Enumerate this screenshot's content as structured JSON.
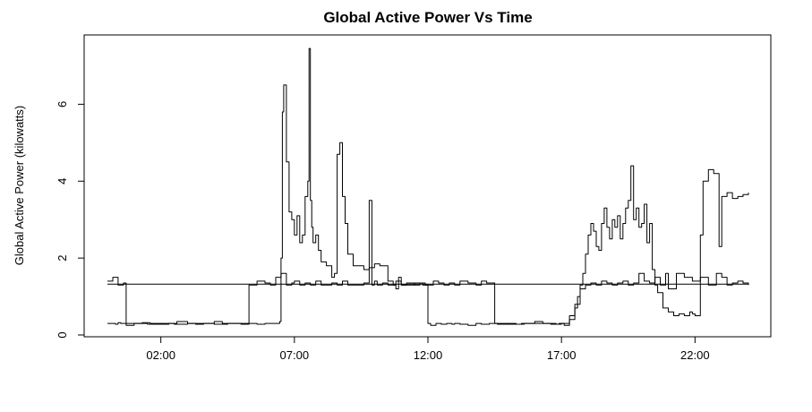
{
  "chart_data": {
    "type": "line",
    "title": "Global Active Power Vs Time",
    "xlabel": "",
    "ylabel": "Global Active Power (kilowatts)",
    "x_unit": "hours",
    "xlim": [
      0,
      24
    ],
    "ylim": [
      0,
      7.5
    ],
    "x_ticks": [
      {
        "value": 2,
        "label": "02:00"
      },
      {
        "value": 7,
        "label": "07:00"
      },
      {
        "value": 12,
        "label": "12:00"
      },
      {
        "value": 17,
        "label": "17:00"
      },
      {
        "value": 22,
        "label": "22:00"
      }
    ],
    "y_ticks": [
      0,
      2,
      4,
      6
    ],
    "grid": false,
    "legend": "none",
    "color": "#000000",
    "series": [
      {
        "x": [
          0,
          0.1,
          0.2,
          0.3,
          0.4,
          0.5,
          0.7,
          1,
          1.3,
          1.6,
          2,
          2.3,
          2.6,
          3,
          3.3,
          3.6,
          4,
          4.3,
          4.6,
          5,
          5.3,
          5.6,
          5.9,
          6.1,
          6.3,
          6.45,
          6.5,
          6.55,
          6.6,
          6.7,
          6.8,
          6.9,
          7,
          7.1,
          7.2,
          7.3,
          7.4,
          7.5,
          7.55,
          7.6,
          7.65,
          7.7,
          7.8,
          7.9,
          8,
          8.2,
          8.4,
          8.5,
          8.6,
          8.7,
          8.8,
          8.9,
          9,
          9.2,
          9.4,
          9.6,
          9.8,
          10,
          10.2,
          10.5,
          10.7,
          10.8,
          10.9,
          11,
          11.2,
          11.5,
          11.8,
          12,
          12.1,
          12.3,
          12.5,
          12.7,
          12.9,
          13,
          13.2,
          13.5,
          13.8,
          14,
          14.3,
          14.6,
          15,
          15.3,
          15.6,
          16,
          16.3,
          16.6,
          16.9,
          17.1,
          17.3,
          17.5,
          17.6,
          17.7,
          17.8,
          17.9,
          18,
          18.1,
          18.2,
          18.3,
          18.4,
          18.5,
          18.6,
          18.7,
          18.8,
          18.9,
          19,
          19.1,
          19.2,
          19.3,
          19.4,
          19.5,
          19.6,
          19.7,
          19.8,
          19.9,
          20,
          20.1,
          20.2,
          20.3,
          20.4,
          20.5,
          20.6,
          20.8,
          21,
          21.2,
          21.4,
          21.6,
          21.8,
          21.9,
          22,
          22.1,
          22.2,
          22.3,
          22.5,
          22.7,
          22.9,
          23,
          23.2,
          23.4,
          23.6,
          23.8,
          24
        ],
        "y": [
          0.3,
          0.3,
          0.3,
          0.28,
          0.32,
          0.3,
          0.25,
          0.3,
          0.32,
          0.3,
          0.28,
          0.3,
          0.35,
          0.3,
          0.28,
          0.3,
          0.35,
          0.3,
          0.3,
          0.28,
          0.3,
          0.28,
          0.3,
          0.3,
          0.3,
          0.35,
          2.0,
          5.8,
          6.5,
          4.5,
          3.2,
          3.0,
          2.6,
          3.1,
          2.4,
          2.6,
          3.6,
          4.0,
          7.45,
          3.5,
          2.8,
          2.4,
          2.6,
          2.2,
          1.9,
          1.8,
          1.5,
          1.6,
          4.7,
          5.0,
          3.6,
          2.9,
          2.1,
          1.8,
          1.8,
          1.7,
          1.75,
          1.85,
          1.8,
          1.4,
          1.3,
          1.2,
          1.5,
          1.3,
          1.3,
          1.35,
          1.3,
          0.3,
          0.25,
          0.3,
          0.28,
          0.3,
          0.28,
          0.3,
          0.28,
          0.25,
          0.3,
          0.28,
          0.3,
          0.28,
          0.3,
          0.28,
          0.3,
          0.35,
          0.3,
          0.28,
          0.3,
          0.25,
          0.4,
          0.7,
          1.0,
          1.3,
          1.6,
          2.1,
          2.6,
          2.9,
          2.7,
          2.3,
          2.2,
          2.9,
          3.3,
          2.8,
          2.5,
          3.0,
          2.8,
          3.1,
          2.5,
          2.9,
          3.3,
          3.5,
          4.4,
          3.0,
          3.3,
          2.8,
          2.9,
          3.4,
          2.4,
          2.9,
          1.7,
          1.3,
          1.1,
          0.7,
          0.6,
          0.5,
          0.55,
          0.5,
          0.6,
          0.55,
          0.5,
          0.5,
          2.6,
          4.0,
          4.3,
          4.2,
          2.3,
          3.6,
          3.7,
          3.55,
          3.6,
          3.65,
          3.7
        ]
      },
      {
        "x": [
          0,
          0.2,
          0.4,
          0.6,
          0.7,
          1,
          1.5,
          2,
          2.5,
          3,
          3.5,
          4,
          4.5,
          5,
          5.3,
          5.6,
          5.9,
          6.1,
          6.3,
          6.5,
          6.7,
          6.9,
          7,
          7.2,
          7.4,
          7.6,
          7.8,
          8,
          8.2,
          8.4,
          8.6,
          8.8,
          9,
          9.3,
          9.6,
          9.8,
          9.9,
          10,
          10.1,
          10.3,
          10.5,
          10.8,
          11,
          11.2,
          11.5,
          11.7,
          11.9,
          12,
          12.2,
          12.4,
          12.6,
          12.8,
          13,
          13.2,
          13.5,
          13.8,
          14,
          14.2,
          14.4,
          14.5,
          14.7,
          15,
          15.5,
          16,
          16.5,
          16.8,
          17,
          17.3,
          17.5,
          17.7,
          17.9,
          18.1,
          18.3,
          18.5,
          18.7,
          18.9,
          19.1,
          19.3,
          19.5,
          19.7,
          19.9,
          20.1,
          20.3,
          20.5,
          20.7,
          20.9,
          21,
          21.3,
          21.6,
          21.9,
          22.2,
          22.5,
          22.8,
          23,
          23.2,
          23.4,
          23.6,
          23.8,
          24
        ],
        "y": [
          1.4,
          1.5,
          1.3,
          1.35,
          0.3,
          0.3,
          0.28,
          0.3,
          0.28,
          0.3,
          0.3,
          0.28,
          0.3,
          0.3,
          1.3,
          1.4,
          1.35,
          1.3,
          1.5,
          1.6,
          1.3,
          1.35,
          1.4,
          1.3,
          1.35,
          1.3,
          1.4,
          1.3,
          1.3,
          1.35,
          1.3,
          1.4,
          1.3,
          1.3,
          1.35,
          3.5,
          1.3,
          1.4,
          1.3,
          1.35,
          1.3,
          1.4,
          1.3,
          1.35,
          1.3,
          1.35,
          1.3,
          1.3,
          1.4,
          1.35,
          1.3,
          1.35,
          1.3,
          1.4,
          1.35,
          1.3,
          1.4,
          1.35,
          1.35,
          0.3,
          0.3,
          0.28,
          0.3,
          0.3,
          0.3,
          0.28,
          0.3,
          0.5,
          0.8,
          1.2,
          1.3,
          1.35,
          1.3,
          1.4,
          1.35,
          1.3,
          1.35,
          1.4,
          1.3,
          1.35,
          1.6,
          1.4,
          1.35,
          1.5,
          1.3,
          1.6,
          1.2,
          1.6,
          1.5,
          1.4,
          1.5,
          1.3,
          1.6,
          1.5,
          1.3,
          1.35,
          1.4,
          1.35,
          1.3
        ]
      },
      {
        "x": [
          0,
          24
        ],
        "y": [
          1.32,
          1.32
        ]
      }
    ]
  }
}
